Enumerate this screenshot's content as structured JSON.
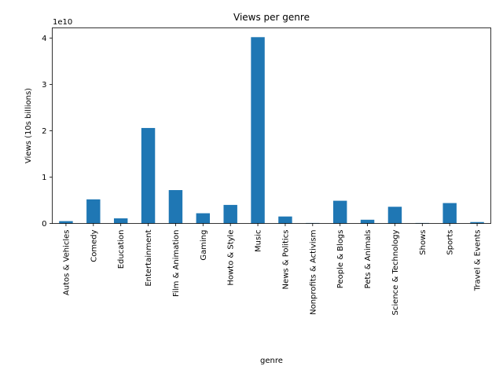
{
  "chart_data": {
    "type": "bar",
    "title": "Views per genre",
    "xlabel": "genre",
    "ylabel": "Views (10s billions)",
    "y_multiplier_label": "1e10",
    "categories": [
      "Autos & Vehicles",
      "Comedy",
      "Education",
      "Entertainment",
      "Film & Animation",
      "Gaming",
      "Howto & Style",
      "Music",
      "News & Politics",
      "Nonprofits & Activism",
      "People & Blogs",
      "Pets & Animals",
      "Science & Technology",
      "Shows",
      "Sports",
      "Travel & Events"
    ],
    "values": [
      500000000.0,
      5200000000.0,
      1100000000.0,
      20600000000.0,
      7200000000.0,
      2200000000.0,
      4000000000.0,
      40200000000.0,
      1500000000.0,
      100000000.0,
      4900000000.0,
      800000000.0,
      3600000000.0,
      100000000.0,
      4400000000.0,
      300000000.0
    ],
    "ylim": [
      0,
      42200000000.0
    ],
    "yticks": [
      0,
      10000000000.0,
      20000000000.0,
      30000000000.0,
      40000000000.0
    ],
    "ytick_labels": [
      "0",
      "1",
      "2",
      "3",
      "4"
    ],
    "bar_color": "#1f77b4",
    "grid": false
  }
}
